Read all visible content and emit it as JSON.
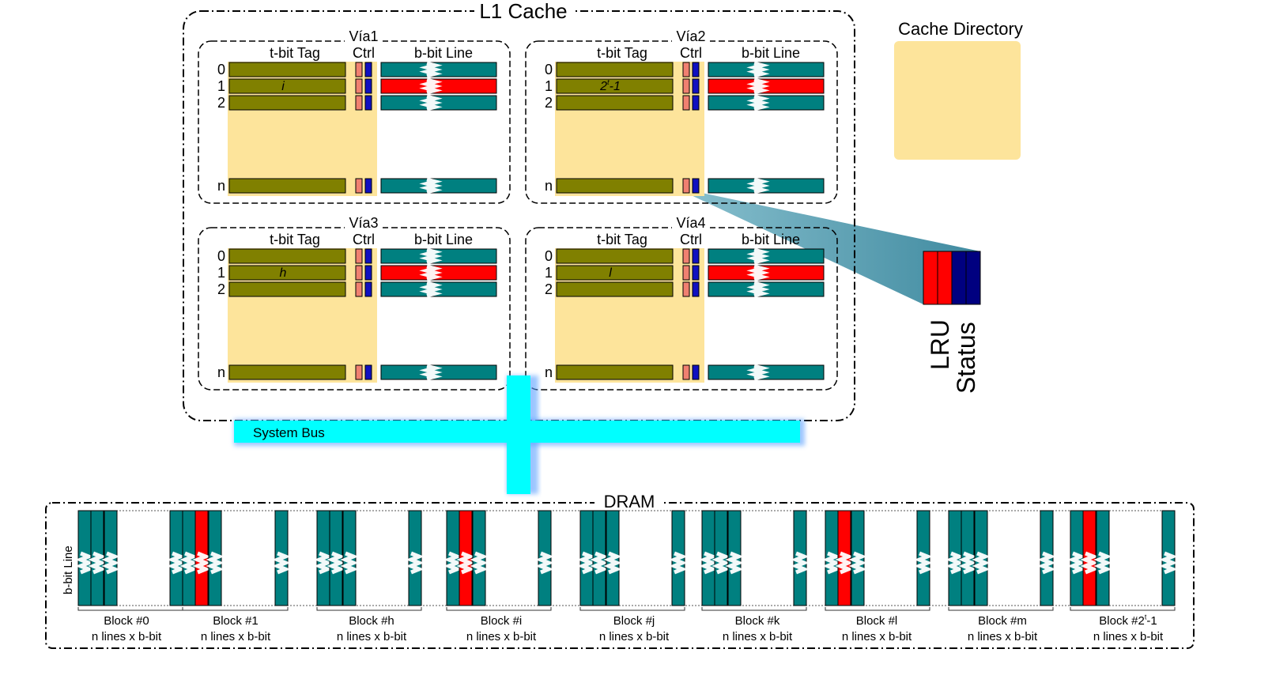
{
  "l1": {
    "title": "L1 Cache",
    "col_tag": "t-bit Tag",
    "col_ctrl": "Ctrl",
    "col_line": "b-bit Line",
    "row_labels": [
      "0",
      "1",
      "2",
      "n"
    ],
    "ways": [
      {
        "name": "Vía1",
        "tag1": "i"
      },
      {
        "name": "Vía2",
        "tag1": "2t-1"
      },
      {
        "name": "Vía3",
        "tag1": "h"
      },
      {
        "name": "Vía4",
        "tag1": "l"
      }
    ]
  },
  "directory": {
    "title": "Cache Directory"
  },
  "ctrl_zoom": {
    "lru": "LRU",
    "status": "Status"
  },
  "bus": {
    "label": "System Bus"
  },
  "dram": {
    "title": "DRAM",
    "axis_label": "b-bit Line",
    "block_sub": "n lines x b-bit",
    "blocks": [
      "Block #0",
      "Block #1",
      "Block #h",
      "Block #i",
      "Block #j",
      "Block #k",
      "Block #l",
      "Block #m",
      "Block #2t-1"
    ]
  },
  "colors": {
    "tag": "#808000",
    "line": "#008080",
    "highlight": "#ff0000",
    "directory": "#fde49b",
    "lru": "#f08070",
    "status": "#1010c0",
    "bus": "#00ffff"
  }
}
